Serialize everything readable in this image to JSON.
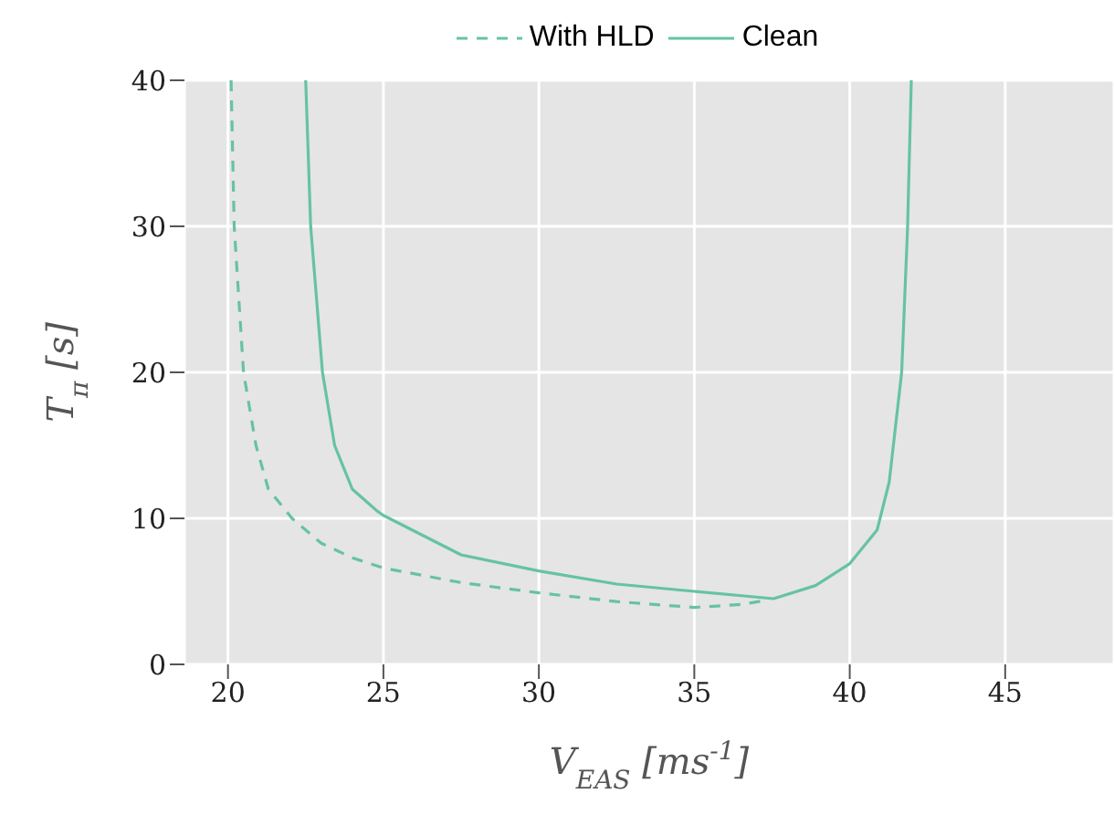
{
  "chart_data": {
    "type": "line",
    "xlabel": "V$_{EAS}$ [ms$^{-1}$]",
    "ylabel": "T$_{π}$ [s]",
    "series": [
      {
        "name": "With HLD",
        "color": "#66c2a5",
        "line_style": "dashed",
        "x": [
          20.1,
          20.2,
          20.5,
          20.9,
          21.3,
          22.06,
          23,
          24,
          25,
          27.5,
          30,
          32.5,
          35,
          36.5,
          37.35
        ],
        "values": [
          40,
          30,
          20,
          15,
          12,
          10,
          8.3,
          7.3,
          6.6,
          5.6,
          4.9,
          4.3,
          3.9,
          4.1,
          4.4
        ]
      },
      {
        "name": "Clean",
        "color": "#66c2a5",
        "line_style": "solid",
        "x": [
          22.5,
          22.66,
          23.04,
          23.43,
          24,
          24.8,
          25,
          27.5,
          30,
          32.5,
          35,
          37.55,
          38.9,
          40,
          40.88,
          41.27,
          41.67,
          41.86,
          41.98
        ],
        "values": [
          40,
          30,
          20,
          15,
          12,
          10.5,
          10.2,
          7.5,
          6.4,
          5.5,
          5.0,
          4.5,
          5.4,
          6.9,
          9.2,
          12.5,
          20,
          29.9,
          40
        ]
      }
    ],
    "xlim": [
      18.6,
      48.5
    ],
    "ylim": [
      0,
      40
    ],
    "xticks": [
      20,
      25,
      30,
      35,
      40,
      45
    ],
    "yticks": [
      0,
      10,
      20,
      30,
      40
    ],
    "grid": true,
    "legend": "top",
    "marker": "none"
  }
}
